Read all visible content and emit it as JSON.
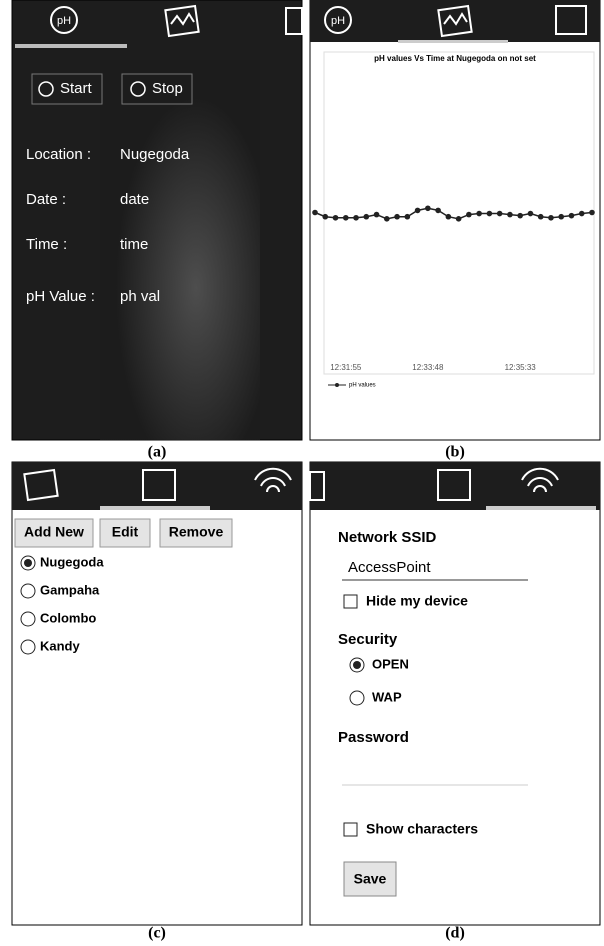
{
  "panel_a": {
    "caption": "(a)",
    "tab_icon_text": "pH",
    "buttons": [
      "Start",
      "Stop"
    ],
    "fields": [
      {
        "label": "Location :",
        "value": "Nugegoda"
      },
      {
        "label": "Date :",
        "value": "date"
      },
      {
        "label": "Time :",
        "value": "time"
      },
      {
        "label": "pH Value :",
        "value": "ph val"
      }
    ]
  },
  "panel_b": {
    "caption": "(b)",
    "tab_icon_text": "pH",
    "chart_data": {
      "type": "line",
      "title": "pH values Vs Time at Nugegoda on not set",
      "categories": [
        null,
        null,
        null,
        "12:31:55",
        null,
        null,
        null,
        null,
        null,
        null,
        null,
        "12:33:48",
        null,
        null,
        null,
        null,
        null,
        null,
        null,
        null,
        "12:35:33",
        null,
        null,
        null,
        null,
        null,
        null,
        null
      ],
      "series": [
        {
          "name": "pH values",
          "color": "#222222",
          "values": [
            7.0,
            6.8,
            6.75,
            6.75,
            6.75,
            6.8,
            6.9,
            6.7,
            6.8,
            6.8,
            7.1,
            7.2,
            7.1,
            6.8,
            6.7,
            6.9,
            6.95,
            6.95,
            6.95,
            6.9,
            6.85,
            6.95,
            6.8,
            6.75,
            6.8,
            6.85,
            6.95,
            7.0
          ]
        }
      ],
      "ylim": [
        0,
        14
      ]
    }
  },
  "panel_c": {
    "caption": "(c)",
    "buttons": [
      "Add New",
      "Edit",
      "Remove"
    ],
    "locations": [
      "Nugegoda",
      "Gampaha",
      "Colombo",
      "Kandy"
    ]
  },
  "panel_d": {
    "caption": "(d)",
    "ssid_label": "Network SSID",
    "ssid_value": "AccessPoint",
    "hide_device": "Hide my device",
    "security_label": "Security",
    "security_options": [
      "OPEN",
      "WAP"
    ],
    "password_label": "Password",
    "show_characters": "Show characters",
    "save": "Save"
  }
}
